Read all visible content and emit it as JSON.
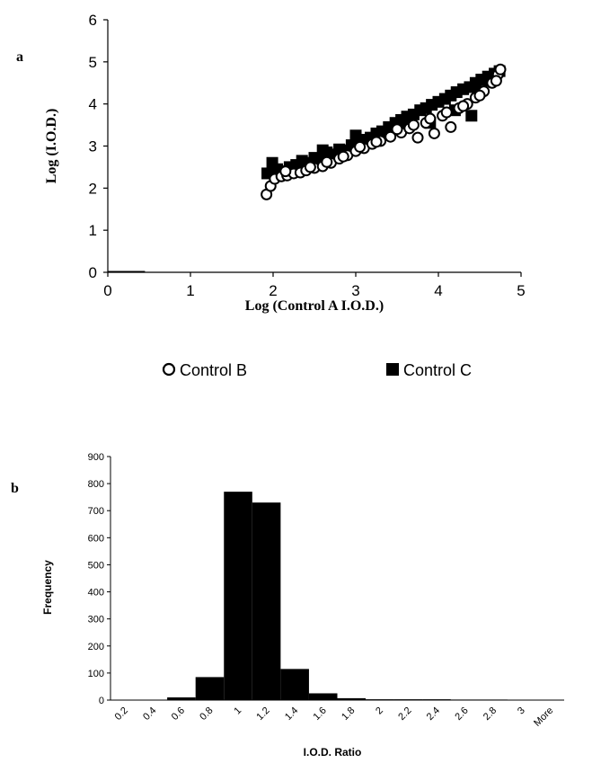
{
  "colors": {
    "ink": "#000000",
    "background": "#ffffff"
  },
  "panel_labels": {
    "a": "a",
    "b": "b"
  },
  "chart_data": [
    {
      "type": "scatter",
      "xlabel": "Log (Control A I.O.D.)",
      "ylabel": "Log (I.O.D.)",
      "xlim": [
        0,
        5
      ],
      "ylim": [
        0,
        6
      ],
      "xticks": [
        "0",
        "1",
        "2",
        "3",
        "4",
        "5"
      ],
      "yticks": [
        "0",
        "1",
        "2",
        "3",
        "4",
        "5",
        "6"
      ],
      "legend_position": "bottom",
      "grid": false,
      "series": [
        {
          "name": "Control B",
          "marker": "open-circle",
          "points": [
            [
              1.92,
              1.85
            ],
            [
              1.97,
              2.05
            ],
            [
              2.02,
              2.22
            ],
            [
              2.1,
              2.28
            ],
            [
              2.17,
              2.3
            ],
            [
              2.25,
              2.35
            ],
            [
              2.33,
              2.37
            ],
            [
              2.4,
              2.42
            ],
            [
              2.5,
              2.48
            ],
            [
              2.6,
              2.52
            ],
            [
              2.7,
              2.6
            ],
            [
              2.8,
              2.7
            ],
            [
              2.9,
              2.78
            ],
            [
              3.0,
              2.88
            ],
            [
              3.1,
              2.95
            ],
            [
              3.2,
              3.05
            ],
            [
              3.3,
              3.12
            ],
            [
              3.42,
              3.22
            ],
            [
              3.55,
              3.32
            ],
            [
              3.65,
              3.42
            ],
            [
              3.75,
              3.2
            ],
            [
              3.85,
              3.55
            ],
            [
              3.95,
              3.3
            ],
            [
              4.05,
              3.72
            ],
            [
              4.15,
              3.45
            ],
            [
              4.25,
              3.9
            ],
            [
              4.35,
              4.0
            ],
            [
              4.45,
              4.15
            ],
            [
              4.55,
              4.3
            ],
            [
              4.65,
              4.5
            ],
            [
              4.72,
              4.7
            ],
            [
              4.75,
              4.82
            ],
            [
              2.15,
              2.4
            ],
            [
              2.45,
              2.5
            ],
            [
              2.65,
              2.62
            ],
            [
              2.85,
              2.75
            ],
            [
              3.05,
              2.98
            ],
            [
              3.25,
              3.1
            ],
            [
              3.5,
              3.4
            ],
            [
              3.7,
              3.5
            ],
            [
              3.9,
              3.65
            ],
            [
              4.1,
              3.8
            ],
            [
              4.3,
              3.95
            ],
            [
              4.5,
              4.2
            ],
            [
              4.7,
              4.55
            ]
          ]
        },
        {
          "name": "Control C",
          "marker": "filled-square",
          "points": [
            [
              1.93,
              2.35
            ],
            [
              1.99,
              2.6
            ],
            [
              2.05,
              2.45
            ],
            [
              2.12,
              2.4
            ],
            [
              2.2,
              2.5
            ],
            [
              2.28,
              2.55
            ],
            [
              2.35,
              2.65
            ],
            [
              2.42,
              2.6
            ],
            [
              2.5,
              2.72
            ],
            [
              2.58,
              2.68
            ],
            [
              2.65,
              2.85
            ],
            [
              2.72,
              2.8
            ],
            [
              2.8,
              2.92
            ],
            [
              2.88,
              2.9
            ],
            [
              2.95,
              3.02
            ],
            [
              3.02,
              3.05
            ],
            [
              3.1,
              3.15
            ],
            [
              3.18,
              3.2
            ],
            [
              3.25,
              3.3
            ],
            [
              3.32,
              3.35
            ],
            [
              3.4,
              3.45
            ],
            [
              3.48,
              3.55
            ],
            [
              3.55,
              3.62
            ],
            [
              3.62,
              3.7
            ],
            [
              3.7,
              3.75
            ],
            [
              3.78,
              3.85
            ],
            [
              3.85,
              3.9
            ],
            [
              3.92,
              3.98
            ],
            [
              4.0,
              4.05
            ],
            [
              4.08,
              4.12
            ],
            [
              4.15,
              4.2
            ],
            [
              4.22,
              4.28
            ],
            [
              4.3,
              4.35
            ],
            [
              4.38,
              4.4
            ],
            [
              4.45,
              4.5
            ],
            [
              4.52,
              4.58
            ],
            [
              4.6,
              4.65
            ],
            [
              4.68,
              4.72
            ],
            [
              4.74,
              4.78
            ],
            [
              4.4,
              3.72
            ],
            [
              3.9,
              3.55
            ],
            [
              3.6,
              3.45
            ],
            [
              4.2,
              3.85
            ],
            [
              2.6,
              2.9
            ],
            [
              3.0,
              3.25
            ],
            [
              4.5,
              4.3
            ],
            [
              4.62,
              4.55
            ]
          ]
        }
      ],
      "baseline_segment": {
        "x": [
          0,
          0.45
        ],
        "y": [
          0,
          0
        ]
      }
    },
    {
      "type": "bar",
      "xlabel": "I.O.D. Ratio",
      "ylabel": "Frequency",
      "ylim": [
        0,
        900
      ],
      "yticks": [
        "0",
        "100",
        "200",
        "300",
        "400",
        "500",
        "600",
        "700",
        "800",
        "900"
      ],
      "grid": false,
      "categories": [
        "0.2",
        "0.4",
        "0.6",
        "0.8",
        "1",
        "1.2",
        "1.4",
        "1.6",
        "1.8",
        "2",
        "2.2",
        "2.4",
        "2.6",
        "2.8",
        "3",
        "More"
      ],
      "values": [
        0,
        0,
        10,
        85,
        770,
        730,
        115,
        25,
        7,
        3,
        3,
        3,
        2,
        2,
        1,
        1
      ]
    }
  ],
  "legend": [
    {
      "label": "Control B",
      "marker": "open-circle"
    },
    {
      "label": "Control C",
      "marker": "filled-square"
    }
  ]
}
